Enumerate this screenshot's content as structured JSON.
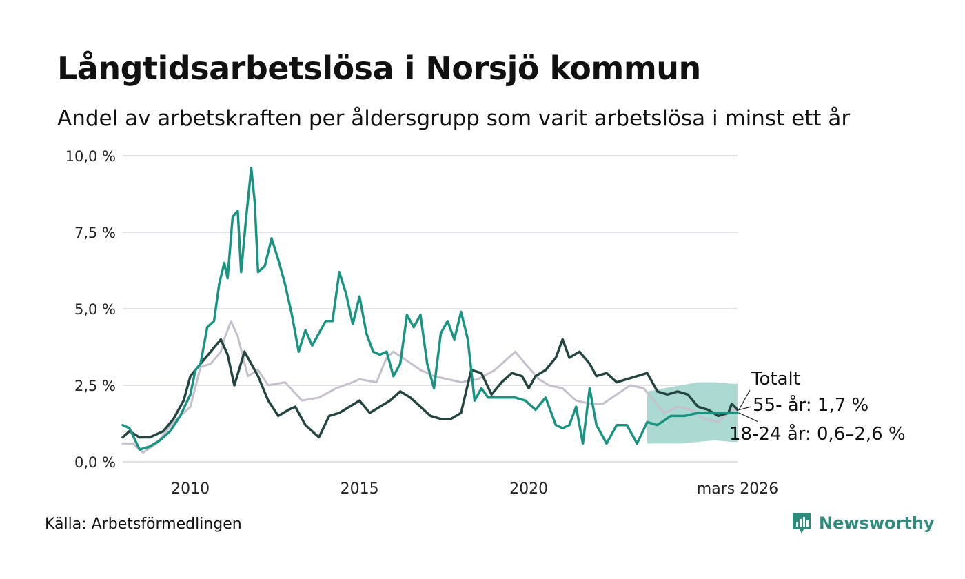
{
  "header": {
    "title": "Långtidsarbetslösa i Norsjö kommun",
    "subtitle": "Andel av arbetskraften per åldersgrupp som varit arbetslösa i minst ett år"
  },
  "footer": {
    "source": "Källa: Arbetsförmedlingen",
    "brand": "Newsworthy"
  },
  "chart_data": {
    "type": "line",
    "title": "Långtidsarbetslösa i Norsjö kommun",
    "xlabel": "",
    "ylabel": "",
    "xlim": [
      2008.0,
      2026.17
    ],
    "ylim": [
      0,
      10
    ],
    "grid": true,
    "y_ticks": [
      {
        "value": 0,
        "label": "0,0 %"
      },
      {
        "value": 2.5,
        "label": "2,5 %"
      },
      {
        "value": 5,
        "label": "5,0 %"
      },
      {
        "value": 7.5,
        "label": "7,5 %"
      },
      {
        "value": 10,
        "label": "10,0 %"
      }
    ],
    "x_ticks": [
      {
        "value": 2010,
        "label": "2010"
      },
      {
        "value": 2015,
        "label": "2015"
      },
      {
        "value": 2020,
        "label": "2020"
      },
      {
        "value": 2026.17,
        "label": "mars 2026"
      }
    ],
    "colors": {
      "youth": "#1a9482",
      "senior": "#24443f",
      "total": "#c5c0cc",
      "band": "#a7d8d0",
      "grid": "#e2e2e6"
    },
    "series": [
      {
        "name": "Totalt",
        "key": "total",
        "label": "Totalt",
        "x": [
          2008.0,
          2008.3,
          2008.6,
          2009.0,
          2009.5,
          2010.0,
          2010.3,
          2010.6,
          2010.9,
          2011.0,
          2011.2,
          2011.4,
          2011.7,
          2012.0,
          2012.3,
          2012.8,
          2013.3,
          2013.8,
          2014.3,
          2014.8,
          2015.0,
          2015.5,
          2015.8,
          2016.0,
          2016.4,
          2016.8,
          2017.2,
          2017.6,
          2018.0,
          2018.5,
          2019.0,
          2019.6,
          2019.9,
          2020.3,
          2020.6,
          2021.0,
          2021.4,
          2021.8,
          2022.2,
          2022.6,
          2023.0,
          2023.4,
          2023.7,
          2024.0,
          2024.4,
          2024.8,
          2025.2,
          2025.6,
          2026.0,
          2026.17
        ],
        "values": [
          0.6,
          0.6,
          0.3,
          0.6,
          1.3,
          1.8,
          3.1,
          3.2,
          3.6,
          4.0,
          4.6,
          4.1,
          2.8,
          3.0,
          2.5,
          2.6,
          2.0,
          2.1,
          2.4,
          2.6,
          2.7,
          2.6,
          3.4,
          3.6,
          3.3,
          3.0,
          2.8,
          2.7,
          2.6,
          2.7,
          3.0,
          3.6,
          3.2,
          2.7,
          2.5,
          2.4,
          2.0,
          1.9,
          1.9,
          2.2,
          2.5,
          2.4,
          2.0,
          1.6,
          1.8,
          1.7,
          1.4,
          1.3,
          1.7,
          1.7
        ]
      },
      {
        "name": "55- år",
        "key": "senior",
        "label": "55- år: 1,7 %",
        "x": [
          2008.0,
          2008.2,
          2008.5,
          2008.8,
          2009.2,
          2009.5,
          2009.8,
          2010.0,
          2010.3,
          2010.6,
          2010.9,
          2011.1,
          2011.3,
          2011.6,
          2011.8,
          2012.0,
          2012.3,
          2012.6,
          2012.9,
          2013.1,
          2013.4,
          2013.8,
          2014.1,
          2014.4,
          2014.7,
          2015.0,
          2015.3,
          2015.6,
          2015.9,
          2016.2,
          2016.5,
          2016.8,
          2017.1,
          2017.4,
          2017.7,
          2018.0,
          2018.3,
          2018.6,
          2018.9,
          2019.2,
          2019.5,
          2019.8,
          2020.0,
          2020.2,
          2020.5,
          2020.8,
          2021.0,
          2021.2,
          2021.5,
          2021.8,
          2022.0,
          2022.3,
          2022.6,
          2022.9,
          2023.2,
          2023.5,
          2023.8,
          2024.1,
          2024.4,
          2024.7,
          2025.0,
          2025.3,
          2025.6,
          2025.9,
          2026.0,
          2026.17
        ],
        "values": [
          0.8,
          1.0,
          0.8,
          0.8,
          1.0,
          1.4,
          2.0,
          2.8,
          3.2,
          3.6,
          4.0,
          3.5,
          2.5,
          3.6,
          3.2,
          2.8,
          2.0,
          1.5,
          1.7,
          1.8,
          1.2,
          0.8,
          1.5,
          1.6,
          1.8,
          2.0,
          1.6,
          1.8,
          2.0,
          2.3,
          2.1,
          1.8,
          1.5,
          1.4,
          1.4,
          1.6,
          3.0,
          2.9,
          2.2,
          2.6,
          2.9,
          2.8,
          2.4,
          2.8,
          3.0,
          3.4,
          4.0,
          3.4,
          3.6,
          3.2,
          2.8,
          2.9,
          2.6,
          2.7,
          2.8,
          2.9,
          2.3,
          2.2,
          2.3,
          2.2,
          1.8,
          1.7,
          1.5,
          1.6,
          1.9,
          1.7
        ]
      },
      {
        "name": "18-24 år",
        "key": "youth",
        "label": "18-24 år: 0,6–2,6 %",
        "x": [
          2008.0,
          2008.2,
          2008.5,
          2008.8,
          2009.1,
          2009.4,
          2009.7,
          2010.0,
          2010.15,
          2010.3,
          2010.5,
          2010.7,
          2010.85,
          2011.0,
          2011.1,
          2011.25,
          2011.4,
          2011.5,
          2011.65,
          2011.8,
          2011.9,
          2012.0,
          2012.2,
          2012.4,
          2012.6,
          2012.8,
          2013.0,
          2013.2,
          2013.4,
          2013.6,
          2013.8,
          2014.0,
          2014.2,
          2014.4,
          2014.6,
          2014.8,
          2015.0,
          2015.2,
          2015.4,
          2015.6,
          2015.8,
          2016.0,
          2016.2,
          2016.4,
          2016.6,
          2016.8,
          2017.0,
          2017.2,
          2017.4,
          2017.6,
          2017.8,
          2018.0,
          2018.2,
          2018.4,
          2018.6,
          2018.8,
          2019.0,
          2019.3,
          2019.6,
          2019.9,
          2020.2,
          2020.5,
          2020.8,
          2021.0,
          2021.2,
          2021.4,
          2021.6,
          2021.8,
          2022.0,
          2022.3,
          2022.6,
          2022.9,
          2023.2,
          2023.5,
          2023.8,
          2024.2,
          2024.6,
          2025.0,
          2025.5,
          2026.0,
          2026.17
        ],
        "values": [
          1.2,
          1.1,
          0.4,
          0.5,
          0.7,
          1.0,
          1.5,
          2.2,
          3.0,
          3.2,
          4.4,
          4.6,
          5.8,
          6.5,
          6.0,
          8.0,
          8.2,
          6.2,
          8.0,
          9.6,
          8.5,
          6.2,
          6.4,
          7.3,
          6.6,
          5.8,
          4.8,
          3.6,
          4.3,
          3.8,
          4.2,
          4.6,
          4.6,
          6.2,
          5.5,
          4.5,
          5.4,
          4.2,
          3.6,
          3.5,
          3.6,
          2.8,
          3.2,
          4.8,
          4.4,
          4.8,
          3.2,
          2.4,
          4.2,
          4.6,
          4.0,
          4.9,
          4.0,
          2.0,
          2.4,
          2.1,
          2.1,
          2.1,
          2.1,
          2.0,
          1.7,
          2.1,
          1.2,
          1.1,
          1.2,
          1.8,
          0.6,
          2.4,
          1.2,
          0.6,
          1.2,
          1.2,
          0.6,
          1.3,
          1.2,
          1.5,
          1.5,
          1.6,
          1.6,
          1.6,
          1.6
        ]
      }
    ],
    "band": {
      "name": "18-24 år (osäkerhetsintervall)",
      "x": [
        2023.5,
        2024.0,
        2024.5,
        2025.0,
        2025.5,
        2026.0,
        2026.17
      ],
      "lower": [
        0.6,
        0.6,
        0.6,
        0.65,
        0.7,
        0.65,
        0.65
      ],
      "upper": [
        2.3,
        2.4,
        2.5,
        2.6,
        2.6,
        2.55,
        2.55
      ]
    }
  }
}
